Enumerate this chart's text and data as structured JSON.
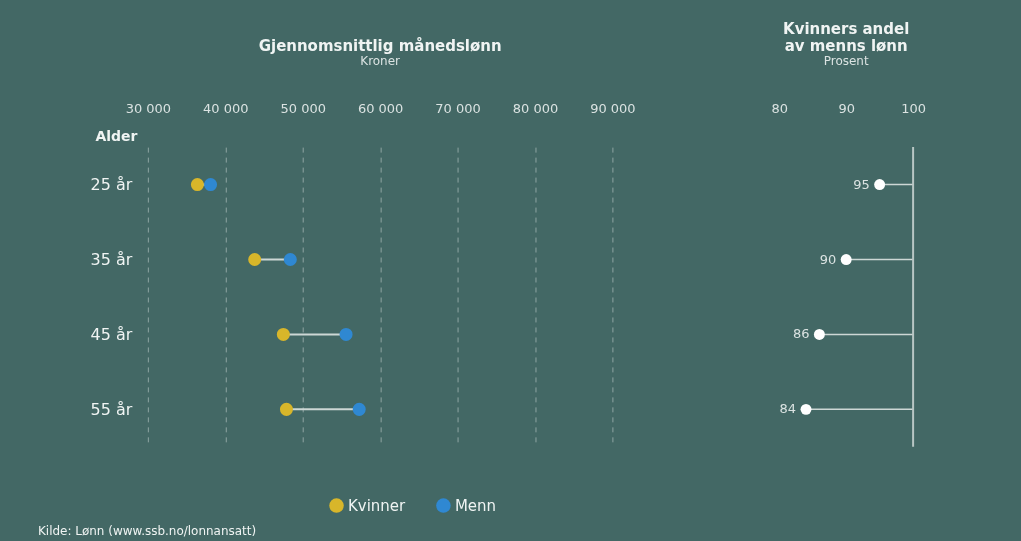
{
  "chart_data": [
    {
      "type": "lollipop",
      "title": "Gjennomsnittlig månedslønn",
      "subtitle": "Kroner",
      "ylabel": "Alder",
      "orientation": "horizontal",
      "categories": [
        "25 år",
        "35 år",
        "45 år",
        "55 år"
      ],
      "series": [
        {
          "name": "Kvinner",
          "color": "#d8b62a",
          "values": [
            36400,
            43800,
            47500,
            47900
          ]
        },
        {
          "name": "Menn",
          "color": "#2f88d2",
          "values": [
            38100,
            48400,
            55600,
            57300
          ]
        }
      ],
      "xlim": [
        30000,
        90000
      ],
      "xticks": [
        {
          "value": 30000,
          "label": "30 000"
        },
        {
          "value": 40000,
          "label": "40 000"
        },
        {
          "value": 50000,
          "label": "50 000"
        },
        {
          "value": 60000,
          "label": "60 000"
        },
        {
          "value": 70000,
          "label": "70 000"
        },
        {
          "value": 80000,
          "label": "80 000"
        },
        {
          "value": 90000,
          "label": "90 000"
        }
      ],
      "grid": "x",
      "legend": "bottom",
      "marker": "circle",
      "annotations": [
        "Kilde: Lønn (www.ssb.no/lonnansatt)"
      ]
    },
    {
      "type": "lollipop",
      "title": "Kvinners andel\nav menns lønn",
      "subtitle": "Prosent",
      "orientation": "horizontal",
      "categories": [
        "25 år",
        "35 år",
        "45 år",
        "55 år"
      ],
      "series": [
        {
          "color": "#ffffff",
          "values": [
            95,
            90,
            86,
            84
          ]
        }
      ],
      "xlim": [
        80,
        100
      ],
      "xticks": [
        80,
        90,
        100
      ],
      "ref_lines": [
        {
          "axis": "x",
          "value": 100,
          "color": "#b8c6c4"
        }
      ],
      "data_labels": true,
      "marker": "circle",
      "tick_labels": "x"
    }
  ]
}
